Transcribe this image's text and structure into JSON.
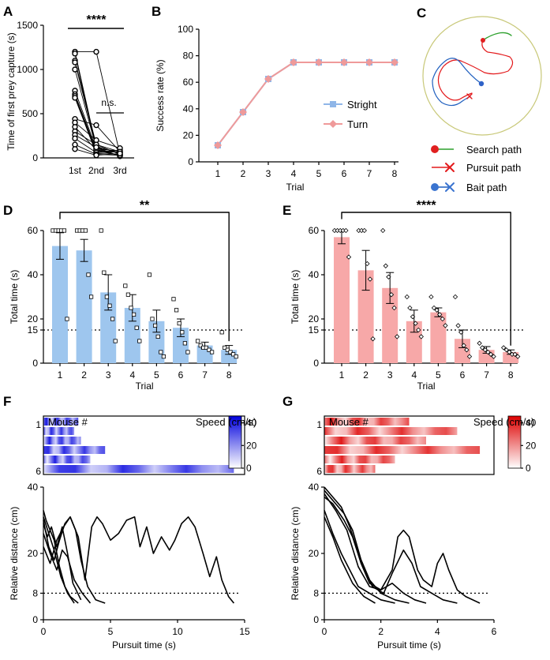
{
  "panel_letters": {
    "A": "A",
    "B": "B",
    "C": "C",
    "D": "D",
    "E": "E",
    "F": "F",
    "G": "G"
  },
  "chart_data": [
    {
      "id": "A",
      "type": "scatter",
      "description": "paired dot plot with connecting lines",
      "ylabel": "Time of first prey capture (s)",
      "categories": [
        "1st",
        "2nd",
        "3rd"
      ],
      "ylim": [
        0,
        1500
      ],
      "yticks": [
        "0",
        "500",
        "1000",
        "1500"
      ],
      "series": [
        [
          1200,
          1200,
          40
        ],
        [
          1200,
          120,
          60
        ],
        [
          1180,
          90,
          30
        ],
        [
          1100,
          150,
          70
        ],
        [
          1080,
          130,
          50
        ],
        [
          1000,
          110,
          20
        ],
        [
          760,
          100,
          80
        ],
        [
          720,
          80,
          30
        ],
        [
          700,
          60,
          90
        ],
        [
          680,
          50,
          40
        ],
        [
          440,
          370,
          70
        ],
        [
          400,
          200,
          110
        ],
        [
          350,
          90,
          60
        ],
        [
          300,
          150,
          40
        ],
        [
          260,
          120,
          20
        ],
        [
          220,
          60,
          70
        ],
        [
          150,
          40,
          30
        ],
        [
          100,
          30,
          50
        ]
      ],
      "annotations": [
        "****",
        "n.s."
      ]
    },
    {
      "id": "B",
      "type": "line",
      "ylabel": "Success rate (%)",
      "xlabel": "Trial",
      "categories": [
        "1",
        "2",
        "3",
        "4",
        "5",
        "6",
        "7",
        "8"
      ],
      "ylim": [
        0,
        100
      ],
      "yticks": [
        "0",
        "20",
        "40",
        "60",
        "80",
        "100"
      ],
      "series": [
        {
          "name": "Stright",
          "color": "#8fb6e8",
          "values": [
            12.5,
            37.5,
            62.5,
            75,
            75,
            75,
            75,
            75
          ]
        },
        {
          "name": "Turn",
          "color": "#ef9a9a",
          "values": [
            12.5,
            37.5,
            62.5,
            75,
            75,
            75,
            75,
            75
          ]
        }
      ]
    },
    {
      "id": "C",
      "type": "diagram",
      "legend": [
        {
          "label": "Search path",
          "color": "#2ca02c",
          "marker": "#e02020"
        },
        {
          "label": "Pursuit path",
          "color": "#e31a1c",
          "marker": "#e31a1c"
        },
        {
          "label": "Bait path",
          "color": "#1f5fbf",
          "marker": "#3a74d0"
        }
      ]
    },
    {
      "id": "D",
      "type": "bar",
      "color": "#9ec6ee",
      "ylabel": "Total time (s)",
      "xlabel": "Trial",
      "categories": [
        "1",
        "2",
        "3",
        "4",
        "5",
        "6",
        "7",
        "8"
      ],
      "values": [
        53,
        51,
        32,
        25,
        19,
        16,
        8,
        6
      ],
      "sem": [
        6,
        5,
        8,
        6,
        5,
        4,
        1.5,
        2
      ],
      "points": [
        [
          60,
          60,
          60,
          60,
          60,
          20
        ],
        [
          60,
          60,
          60,
          60,
          40,
          30
        ],
        [
          60,
          41,
          30,
          26,
          20,
          10
        ],
        [
          35,
          31,
          25,
          22,
          16,
          10
        ],
        [
          40,
          20,
          17,
          12,
          5,
          3
        ],
        [
          29,
          24,
          18,
          14,
          9,
          5
        ],
        [
          10,
          8,
          7,
          7,
          6,
          5
        ],
        [
          14,
          7,
          6,
          5,
          4,
          3
        ]
      ],
      "ylim": [
        0,
        60
      ],
      "yticks": [
        "0",
        "15",
        "20",
        "40",
        "60"
      ],
      "reference_line": 15,
      "significance": "**"
    },
    {
      "id": "E",
      "type": "bar",
      "color": "#f7a8a8",
      "ylabel": "Total time (s)",
      "xlabel": "Trial",
      "categories": [
        "1",
        "2",
        "3",
        "4",
        "5",
        "6",
        "7",
        "8"
      ],
      "values": [
        57,
        42,
        34,
        19,
        23,
        11,
        6,
        5
      ],
      "sem": [
        3,
        9,
        7,
        5,
        2,
        4,
        1.5,
        1
      ],
      "points": [
        [
          60,
          60,
          60,
          60,
          60,
          48
        ],
        [
          60,
          60,
          60,
          45,
          38,
          11
        ],
        [
          60,
          44,
          39,
          31,
          25,
          12
        ],
        [
          30,
          25,
          21,
          18,
          15,
          12
        ],
        [
          30,
          25,
          24,
          22,
          20,
          17
        ],
        [
          30,
          17,
          14,
          8,
          6,
          3
        ],
        [
          9,
          7,
          6,
          5,
          4,
          3
        ],
        [
          7,
          6,
          5,
          4,
          4,
          3
        ]
      ],
      "ylim": [
        0,
        60
      ],
      "yticks": [
        "0",
        "15",
        "20",
        "40",
        "60"
      ],
      "reference_line": 15,
      "significance": "****"
    },
    {
      "id": "F",
      "type": "line",
      "heatmap_label": "Mouse #",
      "heatmap_rows": [
        "1",
        "6"
      ],
      "colorbar_label": "Speed (cm/s)",
      "colorbar_ticks": [
        "0",
        "20",
        "40"
      ],
      "colorbar_color": "#0000dd",
      "ylabel": "Relative distance  (cm)",
      "xlabel": "Pursuit time (s)",
      "xlim": [
        0,
        15
      ],
      "xticks": [
        "0",
        "5",
        "10",
        "15"
      ],
      "ylim": [
        0,
        40
      ],
      "yticks": [
        "0",
        "8",
        "20",
        "40"
      ],
      "reference_line": 8,
      "series": [
        [
          [
            0,
            33
          ],
          [
            0.2,
            30
          ],
          [
            0.5,
            27
          ],
          [
            0.8,
            24
          ],
          [
            1.2,
            16
          ],
          [
            1.6,
            10
          ],
          [
            2.0,
            7
          ],
          [
            2.6,
            5
          ]
        ],
        [
          [
            0,
            31
          ],
          [
            0.4,
            26
          ],
          [
            0.8,
            21
          ],
          [
            1.3,
            13
          ],
          [
            1.8,
            8
          ],
          [
            2.3,
            5
          ]
        ],
        [
          [
            0,
            29
          ],
          [
            0.3,
            25
          ],
          [
            0.6,
            28
          ],
          [
            1.0,
            22
          ],
          [
            1.4,
            28
          ],
          [
            1.8,
            20
          ],
          [
            2.2,
            11
          ],
          [
            2.8,
            6
          ]
        ],
        [
          [
            0,
            30
          ],
          [
            0.4,
            22
          ],
          [
            0.8,
            18
          ],
          [
            1.2,
            24
          ],
          [
            1.6,
            29
          ],
          [
            2.0,
            31
          ],
          [
            2.4,
            27
          ],
          [
            2.8,
            18
          ],
          [
            3.3,
            10
          ],
          [
            3.9,
            6
          ],
          [
            4.6,
            5
          ]
        ],
        [
          [
            0,
            26
          ],
          [
            0.5,
            20
          ],
          [
            1.0,
            15
          ],
          [
            1.4,
            21
          ],
          [
            1.8,
            19
          ],
          [
            2.3,
            12
          ],
          [
            2.9,
            8
          ],
          [
            3.5,
            5
          ]
        ],
        [
          [
            0,
            22
          ],
          [
            0.5,
            17
          ],
          [
            1.0,
            24
          ],
          [
            1.5,
            28
          ],
          [
            2.0,
            31
          ],
          [
            2.6,
            25
          ],
          [
            3.1,
            12
          ],
          [
            3.6,
            28
          ],
          [
            4.0,
            31
          ],
          [
            4.4,
            29
          ],
          [
            5.0,
            24
          ],
          [
            5.6,
            26
          ],
          [
            6.2,
            30
          ],
          [
            6.8,
            31
          ],
          [
            7.2,
            22
          ],
          [
            7.7,
            28
          ],
          [
            8.2,
            20
          ],
          [
            8.8,
            25
          ],
          [
            9.4,
            21
          ],
          [
            9.8,
            24
          ],
          [
            10.3,
            29
          ],
          [
            10.8,
            31
          ],
          [
            11.3,
            28
          ],
          [
            11.9,
            20
          ],
          [
            12.4,
            13
          ],
          [
            12.9,
            19
          ],
          [
            13.3,
            12
          ],
          [
            13.8,
            7
          ],
          [
            14.2,
            5
          ]
        ]
      ]
    },
    {
      "id": "G",
      "type": "line",
      "heatmap_label": "Mouse #",
      "heatmap_rows": [
        "1",
        "6"
      ],
      "colorbar_label": "Speed (cm/s)",
      "colorbar_ticks": [
        "0",
        "20",
        "40"
      ],
      "colorbar_color": "#dd0000",
      "ylabel": "Relative distance  (cm)",
      "xlabel": "Pursuit time (s)",
      "xlim": [
        0,
        6
      ],
      "xticks": [
        "0",
        "2",
        "4",
        "6"
      ],
      "ylim": [
        0,
        40
      ],
      "yticks": [
        "0",
        "8",
        "20",
        "40"
      ],
      "reference_line": 8,
      "series": [
        [
          [
            0,
            40
          ],
          [
            0.3,
            37
          ],
          [
            0.6,
            34
          ],
          [
            0.9,
            28
          ],
          [
            1.2,
            20
          ],
          [
            1.6,
            12
          ],
          [
            2.0,
            8
          ],
          [
            2.5,
            6
          ],
          [
            3.0,
            5
          ]
        ],
        [
          [
            0,
            39
          ],
          [
            0.3,
            36
          ],
          [
            0.7,
            32
          ],
          [
            1.0,
            27
          ],
          [
            1.3,
            18
          ],
          [
            1.7,
            10
          ],
          [
            2.1,
            8
          ],
          [
            2.4,
            14
          ],
          [
            2.8,
            21
          ],
          [
            3.1,
            17
          ],
          [
            3.4,
            10
          ],
          [
            3.8,
            8
          ],
          [
            4.2,
            6
          ],
          [
            4.7,
            5
          ]
        ],
        [
          [
            0,
            38
          ],
          [
            0.4,
            33
          ],
          [
            0.8,
            27
          ],
          [
            1.2,
            16
          ],
          [
            1.6,
            10
          ],
          [
            2.0,
            9
          ],
          [
            2.4,
            11
          ],
          [
            2.8,
            8
          ],
          [
            3.2,
            6
          ],
          [
            3.6,
            5
          ]
        ],
        [
          [
            0,
            37
          ],
          [
            0.3,
            35
          ],
          [
            0.7,
            30
          ],
          [
            1.0,
            25
          ],
          [
            1.3,
            17
          ],
          [
            1.6,
            11
          ],
          [
            2.0,
            9
          ],
          [
            2.4,
            15
          ],
          [
            2.6,
            25
          ],
          [
            2.8,
            27
          ],
          [
            3.0,
            25
          ],
          [
            3.3,
            15
          ],
          [
            3.5,
            12
          ],
          [
            3.8,
            10
          ],
          [
            4.0,
            17
          ],
          [
            4.2,
            20
          ],
          [
            4.4,
            15
          ],
          [
            4.7,
            9
          ],
          [
            5.0,
            7
          ],
          [
            5.5,
            5
          ]
        ],
        [
          [
            0,
            33
          ],
          [
            0.3,
            26
          ],
          [
            0.6,
            20
          ],
          [
            0.9,
            15
          ],
          [
            1.2,
            10
          ],
          [
            1.6,
            8
          ],
          [
            2.0,
            6
          ],
          [
            2.5,
            5
          ]
        ],
        [
          [
            0,
            31
          ],
          [
            0.3,
            25
          ],
          [
            0.6,
            18
          ],
          [
            1.0,
            11
          ],
          [
            1.4,
            7
          ],
          [
            1.8,
            5
          ]
        ]
      ]
    }
  ]
}
